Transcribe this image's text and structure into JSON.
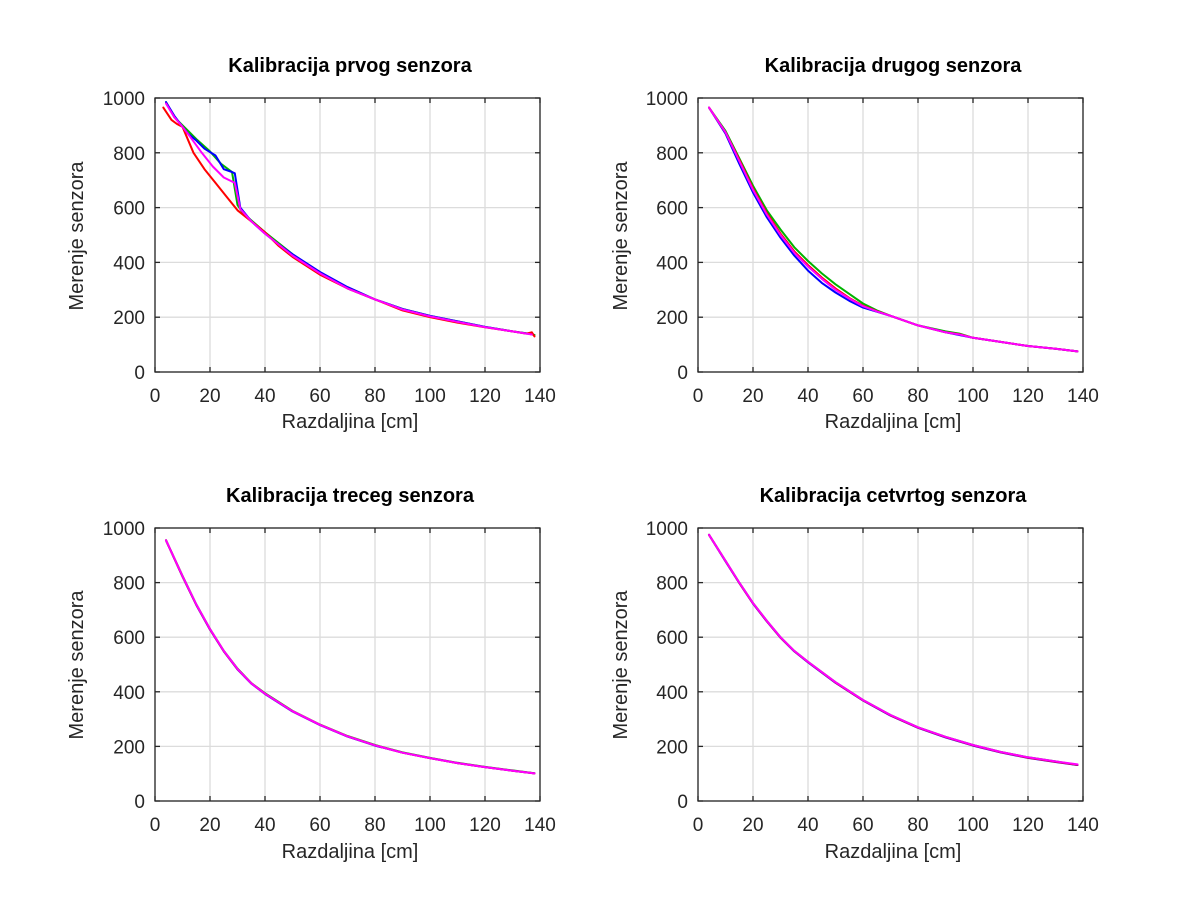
{
  "colors": {
    "background": "#ffffff",
    "axis": "#262626",
    "grid": "#dcdcdc",
    "series_colors": [
      "#00b300",
      "#0000ff",
      "#ff0000",
      "#ff00ff"
    ]
  },
  "chart_data": [
    {
      "type": "line",
      "title": "Kalibracija prvog senzora",
      "xlabel": "Razdaljina [cm]",
      "ylabel": "Merenje senzora",
      "xlim": [
        0,
        140
      ],
      "ylim": [
        0,
        1000
      ],
      "xticks": [
        0,
        20,
        40,
        60,
        80,
        100,
        120,
        140
      ],
      "yticks": [
        0,
        200,
        400,
        600,
        800,
        1000
      ],
      "grid": true,
      "series": [
        {
          "color": "#00b300",
          "x": [
            4,
            7,
            11,
            15,
            20,
            24,
            28,
            30,
            32,
            40,
            50,
            60,
            70,
            80,
            90,
            100,
            110,
            120,
            130,
            136,
            138
          ],
          "y": [
            985,
            930,
            890,
            850,
            805,
            760,
            730,
            610,
            580,
            510,
            430,
            360,
            305,
            265,
            230,
            205,
            185,
            165,
            148,
            140,
            135
          ]
        },
        {
          "color": "#0000ff",
          "x": [
            4,
            7,
            10,
            12,
            15,
            18,
            22,
            25,
            28,
            29,
            31,
            35,
            40,
            45,
            50,
            60,
            70,
            80,
            90,
            100,
            110,
            120,
            130,
            137
          ],
          "y": [
            985,
            935,
            895,
            870,
            845,
            815,
            790,
            740,
            730,
            725,
            600,
            550,
            505,
            465,
            430,
            365,
            310,
            265,
            230,
            205,
            185,
            165,
            148,
            138
          ]
        },
        {
          "color": "#ff0000",
          "x": [
            3,
            6,
            8,
            10,
            14,
            18,
            22,
            26,
            30,
            35,
            40,
            45,
            50,
            60,
            70,
            80,
            90,
            100,
            110,
            120,
            130,
            135,
            137,
            138
          ],
          "y": [
            965,
            920,
            905,
            895,
            800,
            740,
            690,
            640,
            590,
            550,
            510,
            460,
            420,
            355,
            305,
            265,
            225,
            200,
            180,
            163,
            148,
            140,
            145,
            130
          ]
        },
        {
          "color": "#ff00ff",
          "x": [
            4,
            7,
            10,
            13,
            17,
            21,
            25,
            29,
            31,
            35,
            40,
            45,
            50,
            60,
            70,
            80,
            90,
            100,
            110,
            120,
            130,
            137
          ],
          "y": [
            980,
            930,
            895,
            855,
            800,
            750,
            710,
            690,
            595,
            550,
            505,
            465,
            425,
            360,
            305,
            265,
            228,
            203,
            183,
            164,
            148,
            137
          ]
        }
      ]
    },
    {
      "type": "line",
      "title": "Kalibracija drugog senzora",
      "xlabel": "Razdaljina [cm]",
      "ylabel": "Merenje senzora",
      "xlim": [
        0,
        140
      ],
      "ylim": [
        0,
        1000
      ],
      "xticks": [
        0,
        20,
        40,
        60,
        80,
        100,
        120,
        140
      ],
      "yticks": [
        0,
        200,
        400,
        600,
        800,
        1000
      ],
      "grid": true,
      "series": [
        {
          "color": "#00b300",
          "x": [
            4,
            10,
            15,
            20,
            25,
            30,
            35,
            40,
            45,
            50,
            55,
            60,
            65,
            70,
            80,
            90,
            95,
            100,
            110,
            120,
            130,
            138
          ],
          "y": [
            965,
            880,
            780,
            680,
            590,
            520,
            455,
            405,
            360,
            320,
            285,
            250,
            225,
            205,
            170,
            148,
            140,
            125,
            110,
            95,
            85,
            75
          ]
        },
        {
          "color": "#0000ff",
          "x": [
            4,
            10,
            15,
            20,
            25,
            30,
            35,
            40,
            45,
            50,
            55,
            60,
            65,
            70,
            80,
            90,
            95,
            100,
            110,
            120,
            130,
            138
          ],
          "y": [
            965,
            870,
            760,
            655,
            565,
            490,
            425,
            370,
            325,
            290,
            260,
            235,
            220,
            205,
            170,
            145,
            135,
            125,
            110,
            95,
            85,
            75
          ]
        },
        {
          "color": "#ff0000",
          "x": [
            4,
            10,
            15,
            20,
            25,
            30,
            35,
            40,
            45,
            50,
            55,
            60,
            65,
            70,
            80,
            90,
            95,
            100,
            110,
            120,
            130,
            138
          ],
          "y": [
            965,
            875,
            775,
            670,
            580,
            505,
            440,
            390,
            345,
            305,
            270,
            242,
            222,
            205,
            170,
            145,
            138,
            125,
            110,
            95,
            85,
            75
          ]
        },
        {
          "color": "#ff00ff",
          "x": [
            4,
            10,
            15,
            20,
            25,
            30,
            35,
            40,
            45,
            50,
            55,
            60,
            65,
            70,
            80,
            90,
            95,
            100,
            110,
            120,
            130,
            138
          ],
          "y": [
            965,
            875,
            770,
            665,
            575,
            500,
            435,
            385,
            340,
            300,
            268,
            240,
            221,
            205,
            170,
            145,
            137,
            125,
            110,
            95,
            85,
            75
          ]
        }
      ]
    },
    {
      "type": "line",
      "title": "Kalibracija treceg senzora",
      "xlabel": "Razdaljina [cm]",
      "ylabel": "Merenje senzora",
      "xlim": [
        0,
        140
      ],
      "ylim": [
        0,
        1000
      ],
      "xticks": [
        0,
        20,
        40,
        60,
        80,
        100,
        120,
        140
      ],
      "yticks": [
        0,
        200,
        400,
        600,
        800,
        1000
      ],
      "grid": true,
      "series": [
        {
          "color": "#00b300",
          "x": [
            4,
            10,
            15,
            20,
            25,
            30,
            35,
            40,
            50,
            60,
            70,
            80,
            90,
            100,
            110,
            120,
            130,
            138
          ],
          "y": [
            955,
            825,
            720,
            630,
            550,
            485,
            432,
            395,
            330,
            280,
            238,
            205,
            178,
            158,
            140,
            125,
            112,
            102
          ]
        },
        {
          "color": "#0000ff",
          "x": [
            4,
            10,
            15,
            20,
            25,
            30,
            35,
            40,
            50,
            60,
            70,
            80,
            90,
            100,
            110,
            120,
            130,
            138
          ],
          "y": [
            955,
            822,
            718,
            628,
            548,
            482,
            430,
            392,
            328,
            278,
            236,
            203,
            177,
            157,
            139,
            124,
            111,
            101
          ]
        },
        {
          "color": "#ff0000",
          "x": [
            4,
            10,
            15,
            20,
            25,
            30,
            35,
            40,
            50,
            60,
            70,
            80,
            90,
            100,
            110,
            120,
            130,
            138
          ],
          "y": [
            955,
            823,
            719,
            629,
            549,
            483,
            431,
            393,
            329,
            279,
            237,
            204,
            177,
            157,
            139,
            124,
            111,
            101
          ]
        },
        {
          "color": "#ff00ff",
          "x": [
            4,
            10,
            15,
            20,
            25,
            30,
            35,
            40,
            50,
            60,
            70,
            80,
            90,
            100,
            110,
            120,
            130,
            138
          ],
          "y": [
            955,
            824,
            720,
            630,
            550,
            484,
            431,
            393,
            329,
            279,
            237,
            204,
            177,
            157,
            139,
            124,
            111,
            101
          ]
        }
      ]
    },
    {
      "type": "line",
      "title": "Kalibracija cetvrtog senzora",
      "xlabel": "Razdaljina [cm]",
      "ylabel": "Merenje senzora",
      "xlim": [
        0,
        140
      ],
      "ylim": [
        0,
        1000
      ],
      "xticks": [
        0,
        20,
        40,
        60,
        80,
        100,
        120,
        140
      ],
      "yticks": [
        0,
        200,
        400,
        600,
        800,
        1000
      ],
      "grid": true,
      "series": [
        {
          "color": "#00b300",
          "x": [
            4,
            10,
            15,
            20,
            25,
            30,
            35,
            40,
            50,
            60,
            70,
            80,
            90,
            100,
            110,
            120,
            130,
            138
          ],
          "y": [
            975,
            880,
            800,
            725,
            660,
            600,
            550,
            510,
            435,
            370,
            315,
            270,
            235,
            205,
            180,
            160,
            145,
            132
          ]
        },
        {
          "color": "#0000ff",
          "x": [
            4,
            10,
            15,
            20,
            25,
            30,
            35,
            40,
            50,
            60,
            70,
            80,
            90,
            100,
            110,
            120,
            130,
            138
          ],
          "y": [
            975,
            878,
            798,
            723,
            658,
            598,
            548,
            508,
            433,
            368,
            313,
            268,
            233,
            203,
            178,
            158,
            143,
            132
          ]
        },
        {
          "color": "#ff0000",
          "x": [
            4,
            10,
            15,
            20,
            25,
            30,
            35,
            40,
            50,
            60,
            70,
            80,
            90,
            100,
            110,
            120,
            130,
            138
          ],
          "y": [
            975,
            879,
            799,
            724,
            659,
            599,
            549,
            509,
            434,
            369,
            314,
            269,
            234,
            204,
            179,
            159,
            144,
            133
          ]
        },
        {
          "color": "#ff00ff",
          "x": [
            4,
            10,
            15,
            20,
            25,
            30,
            35,
            40,
            50,
            60,
            70,
            80,
            90,
            100,
            110,
            120,
            130,
            138
          ],
          "y": [
            975,
            880,
            800,
            725,
            660,
            600,
            550,
            510,
            435,
            370,
            315,
            270,
            235,
            205,
            180,
            160,
            145,
            134
          ]
        }
      ]
    }
  ]
}
